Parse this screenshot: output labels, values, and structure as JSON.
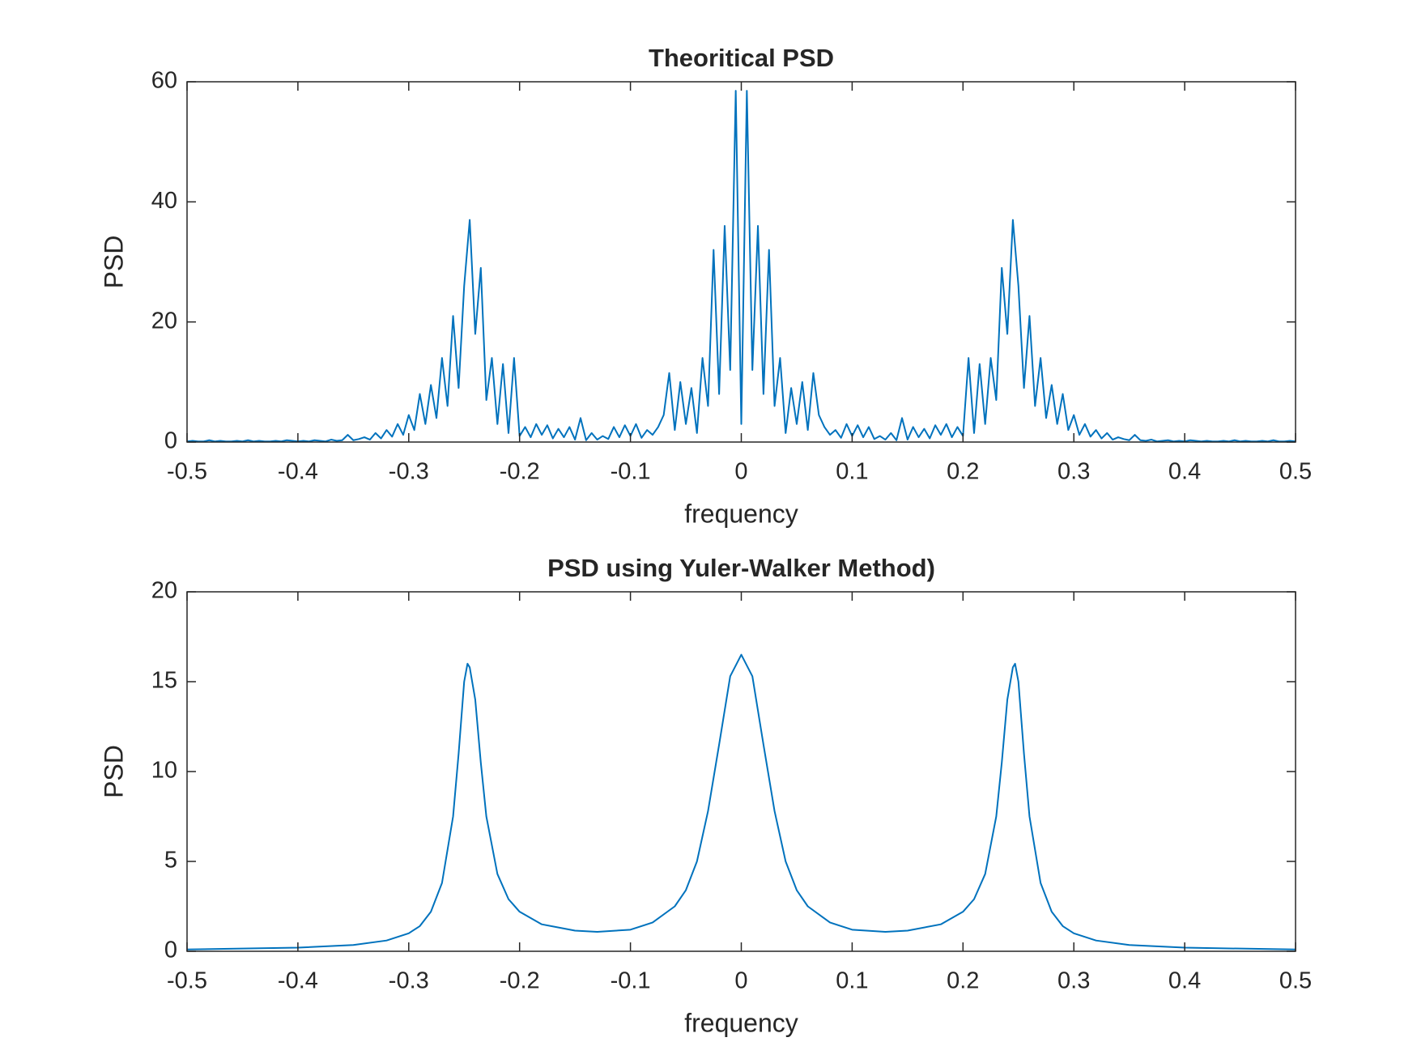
{
  "chart_data": [
    {
      "type": "line",
      "title": "Theoritical PSD",
      "xlabel": "frequency",
      "ylabel": "PSD",
      "color": "#0072bd",
      "xlim": [
        -0.5,
        0.5
      ],
      "xticks": [
        -0.5,
        -0.4,
        -0.3,
        -0.2,
        -0.1,
        0,
        0.1,
        0.2,
        0.3,
        0.4,
        0.5
      ],
      "ylim": [
        0,
        60
      ],
      "yticks": [
        0,
        20,
        40,
        60
      ],
      "x": [
        -0.5,
        -0.495,
        -0.49,
        -0.485,
        -0.48,
        -0.475,
        -0.47,
        -0.465,
        -0.46,
        -0.455,
        -0.45,
        -0.445,
        -0.44,
        -0.435,
        -0.43,
        -0.425,
        -0.42,
        -0.415,
        -0.41,
        -0.405,
        -0.4,
        -0.395,
        -0.39,
        -0.385,
        -0.38,
        -0.375,
        -0.37,
        -0.365,
        -0.36,
        -0.355,
        -0.35,
        -0.345,
        -0.34,
        -0.335,
        -0.33,
        -0.325,
        -0.32,
        -0.315,
        -0.31,
        -0.305,
        -0.3,
        -0.295,
        -0.29,
        -0.285,
        -0.28,
        -0.275,
        -0.27,
        -0.265,
        -0.26,
        -0.255,
        -0.25,
        -0.245,
        -0.24,
        -0.235,
        -0.23,
        -0.225,
        -0.22,
        -0.215,
        -0.21,
        -0.205,
        -0.2,
        -0.195,
        -0.19,
        -0.185,
        -0.18,
        -0.175,
        -0.17,
        -0.165,
        -0.16,
        -0.155,
        -0.15,
        -0.145,
        -0.14,
        -0.135,
        -0.13,
        -0.125,
        -0.12,
        -0.115,
        -0.11,
        -0.105,
        -0.1,
        -0.095,
        -0.09,
        -0.085,
        -0.08,
        -0.075,
        -0.07,
        -0.065,
        -0.06,
        -0.055,
        -0.05,
        -0.045,
        -0.04,
        -0.035,
        -0.03,
        -0.025,
        -0.02,
        -0.015,
        -0.01,
        -0.005,
        0,
        0.005,
        0.01,
        0.015,
        0.02,
        0.025,
        0.03,
        0.035,
        0.04,
        0.045,
        0.05,
        0.055,
        0.06,
        0.065,
        0.07,
        0.075,
        0.08,
        0.085,
        0.09,
        0.095,
        0.1,
        0.105,
        0.11,
        0.115,
        0.12,
        0.125,
        0.13,
        0.135,
        0.14,
        0.145,
        0.15,
        0.155,
        0.16,
        0.165,
        0.17,
        0.175,
        0.18,
        0.185,
        0.19,
        0.195,
        0.2,
        0.205,
        0.21,
        0.215,
        0.22,
        0.225,
        0.23,
        0.235,
        0.24,
        0.245,
        0.25,
        0.255,
        0.26,
        0.265,
        0.27,
        0.275,
        0.28,
        0.285,
        0.29,
        0.295,
        0.3,
        0.305,
        0.31,
        0.315,
        0.32,
        0.325,
        0.33,
        0.335,
        0.34,
        0.345,
        0.35,
        0.355,
        0.36,
        0.365,
        0.37,
        0.375,
        0.38,
        0.385,
        0.39,
        0.395,
        0.4,
        0.405,
        0.41,
        0.415,
        0.42,
        0.425,
        0.43,
        0.435,
        0.44,
        0.445,
        0.45,
        0.455,
        0.46,
        0.465,
        0.47,
        0.475,
        0.48,
        0.485,
        0.49,
        0.495,
        0.5
      ],
      "values": [
        0.1,
        0.2,
        0.1,
        0.1,
        0.3,
        0.1,
        0.2,
        0.1,
        0.1,
        0.2,
        0.1,
        0.3,
        0.1,
        0.2,
        0.1,
        0.1,
        0.2,
        0.1,
        0.3,
        0.2,
        0.1,
        0.2,
        0.1,
        0.3,
        0.2,
        0.1,
        0.4,
        0.2,
        0.3,
        1.2,
        0.3,
        0.5,
        0.8,
        0.4,
        1.5,
        0.6,
        2.0,
        0.9,
        3.0,
        1.2,
        4.5,
        2.0,
        8.0,
        3.0,
        9.5,
        4.0,
        14,
        6,
        21,
        9,
        26,
        37,
        18,
        29,
        7,
        14,
        3,
        13,
        1.5,
        14,
        1.0,
        2.5,
        0.8,
        3.0,
        1.2,
        2.8,
        0.6,
        2.2,
        0.8,
        2.5,
        0.4,
        4.0,
        0.3,
        1.5,
        0.4,
        1.0,
        0.5,
        2.5,
        0.8,
        2.8,
        1.0,
        3.0,
        0.7,
        2.0,
        1.2,
        2.5,
        4.5,
        11.5,
        2.0,
        10,
        3,
        9,
        1.5,
        14,
        6,
        32,
        8,
        36,
        12,
        58.5,
        3,
        58.5,
        12,
        36,
        8,
        32,
        6,
        14,
        1.5,
        9,
        3,
        10,
        2.0,
        11.5,
        4.5,
        2.5,
        1.2,
        2.0,
        0.7,
        3.0,
        1.0,
        2.8,
        0.8,
        2.5,
        0.5,
        1.0,
        0.4,
        1.5,
        0.3,
        4.0,
        0.4,
        2.5,
        0.8,
        2.2,
        0.6,
        2.8,
        1.2,
        3.0,
        0.8,
        2.5,
        1.0,
        14,
        1.5,
        13,
        3,
        14,
        7,
        29,
        18,
        37,
        26,
        9,
        21,
        6,
        14,
        4.0,
        9.5,
        3.0,
        8.0,
        2.0,
        4.5,
        1.2,
        3.0,
        0.9,
        2.0,
        0.6,
        1.5,
        0.4,
        0.8,
        0.5,
        0.3,
        1.2,
        0.3,
        0.2,
        0.4,
        0.1,
        0.2,
        0.3,
        0.1,
        0.2,
        0.1,
        0.3,
        0.2,
        0.1,
        0.2,
        0.1,
        0.1,
        0.2,
        0.1,
        0.3,
        0.1,
        0.2,
        0.1,
        0.1,
        0.2,
        0.1,
        0.3,
        0.1,
        0.1,
        0.2,
        0.1
      ]
    },
    {
      "type": "line",
      "title": "PSD using Yuler-Walker Method)",
      "xlabel": "frequency",
      "ylabel": "PSD",
      "color": "#0072bd",
      "xlim": [
        -0.5,
        0.5
      ],
      "xticks": [
        -0.5,
        -0.4,
        -0.3,
        -0.2,
        -0.1,
        0,
        0.1,
        0.2,
        0.3,
        0.4,
        0.5
      ],
      "ylim": [
        0,
        20
      ],
      "yticks": [
        0,
        5,
        10,
        15,
        20
      ],
      "x": [
        -0.5,
        -0.45,
        -0.4,
        -0.35,
        -0.32,
        -0.3,
        -0.29,
        -0.28,
        -0.27,
        -0.26,
        -0.255,
        -0.25,
        -0.247,
        -0.245,
        -0.24,
        -0.235,
        -0.23,
        -0.22,
        -0.21,
        -0.2,
        -0.18,
        -0.15,
        -0.13,
        -0.1,
        -0.08,
        -0.06,
        -0.05,
        -0.04,
        -0.03,
        -0.02,
        -0.01,
        0,
        0.01,
        0.02,
        0.03,
        0.04,
        0.05,
        0.06,
        0.08,
        0.1,
        0.13,
        0.15,
        0.18,
        0.2,
        0.21,
        0.22,
        0.23,
        0.235,
        0.24,
        0.245,
        0.247,
        0.25,
        0.255,
        0.26,
        0.27,
        0.28,
        0.29,
        0.3,
        0.32,
        0.35,
        0.4,
        0.45,
        0.5
      ],
      "values": [
        0.1,
        0.15,
        0.2,
        0.35,
        0.6,
        1.0,
        1.4,
        2.2,
        3.8,
        7.5,
        11,
        15,
        16,
        15.8,
        14,
        10.5,
        7.5,
        4.3,
        2.9,
        2.2,
        1.5,
        1.15,
        1.08,
        1.2,
        1.6,
        2.5,
        3.4,
        5.0,
        7.8,
        11.5,
        15.3,
        16.5,
        15.3,
        11.5,
        7.8,
        5.0,
        3.4,
        2.5,
        1.6,
        1.2,
        1.08,
        1.15,
        1.5,
        2.2,
        2.9,
        4.3,
        7.5,
        10.5,
        14,
        15.8,
        16,
        15,
        11,
        7.5,
        3.8,
        2.2,
        1.4,
        1.0,
        0.6,
        0.35,
        0.2,
        0.15,
        0.1
      ]
    }
  ]
}
